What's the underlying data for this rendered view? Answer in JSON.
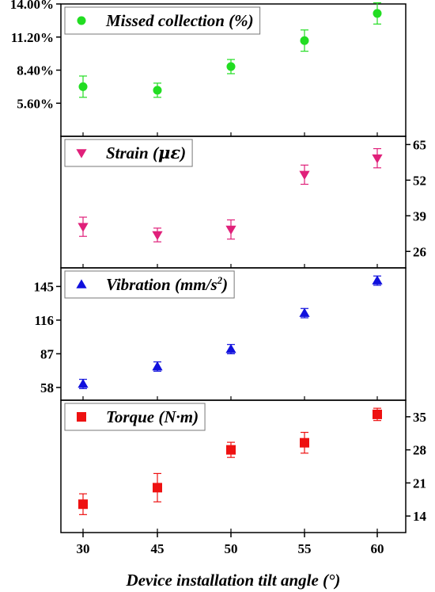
{
  "chart_data": {
    "type": "scatter",
    "x": [
      "30",
      "45",
      "50",
      "55",
      "60"
    ],
    "xlabel": "Device installation tilt angle (°)",
    "panels": [
      {
        "name": "Missed collection (%)",
        "legend": "Missed collection (%)",
        "marker": "circle",
        "color": "#22DD22",
        "y_axis_side": "left",
        "ylim": [
          2.8,
          14.0
        ],
        "yticks": [
          5.6,
          8.4,
          11.2,
          14.0
        ],
        "ytick_labels": [
          "5.60%",
          "8.40%",
          "11.20%",
          "14.00%"
        ],
        "values": [
          7.0,
          6.7,
          8.7,
          10.9,
          13.2
        ],
        "errors": [
          0.9,
          0.6,
          0.6,
          0.9,
          0.9
        ]
      },
      {
        "name": "Strain (με)",
        "legend_main": "Strain (",
        "legend_greek": "με",
        "legend_close": ")",
        "marker": "triangle-down",
        "color": "#E0207A",
        "y_axis_side": "right",
        "ylim": [
          20,
          68
        ],
        "yticks": [
          26,
          39,
          52,
          65
        ],
        "ytick_labels": [
          "26",
          "39",
          "52",
          "65"
        ],
        "values": [
          35,
          32,
          34,
          54,
          60
        ],
        "errors": [
          3.5,
          2.5,
          3.5,
          3.5,
          3.5
        ]
      },
      {
        "name": "Vibration (mm/s2)",
        "legend_main": "Vibration (mm/s",
        "legend_sup": "2",
        "legend_close": ")",
        "marker": "triangle-up",
        "color": "#1010DD",
        "y_axis_side": "left",
        "ylim": [
          47,
          161
        ],
        "yticks": [
          58,
          87,
          116,
          145
        ],
        "ytick_labels": [
          "58",
          "87",
          "116",
          "145"
        ],
        "values": [
          61,
          76,
          91,
          122,
          150
        ],
        "errors": [
          4,
          4,
          4,
          4,
          4
        ]
      },
      {
        "name": "Torque (N·m)",
        "legend": "Torque (N·m)",
        "marker": "square",
        "color": "#EE1111",
        "y_axis_side": "right",
        "ylim": [
          10.5,
          38.5
        ],
        "yticks": [
          14,
          21,
          28,
          35
        ],
        "ytick_labels": [
          "14",
          "21",
          "28",
          "35"
        ],
        "values": [
          16.5,
          20,
          28,
          29.5,
          35.5
        ],
        "errors": [
          2.2,
          3.0,
          1.6,
          2.2,
          1.3
        ]
      }
    ]
  }
}
